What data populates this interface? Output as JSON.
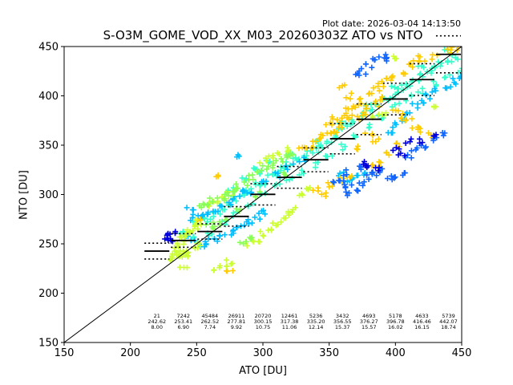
{
  "plot_date": "Plot date: 2026-03-04 14:13:50",
  "chart_data": {
    "type": "scatter",
    "title": "S-O3M_GOME_VOD_XX_M03_20260303Z ATO vs NTO",
    "xlabel": "ATO [DU]",
    "ylabel": "NTO [DU]",
    "xlim": [
      150,
      450
    ],
    "ylim": [
      150,
      450
    ],
    "xticks": [
      "150",
      "200",
      "250",
      "300",
      "350",
      "400",
      "450"
    ],
    "yticks": [
      "150",
      "200",
      "250",
      "300",
      "350",
      "400",
      "450"
    ],
    "grid": false,
    "reference_line": "1:1",
    "bins": [
      {
        "x": 220,
        "count": "21",
        "mean": "242.62",
        "std": "8.00"
      },
      {
        "x": 240,
        "count": "7242",
        "mean": "253.41",
        "std": "6.90"
      },
      {
        "x": 260,
        "count": "45484",
        "mean": "262.52",
        "std": "7.74"
      },
      {
        "x": 280,
        "count": "26911",
        "mean": "277.81",
        "std": "9.92"
      },
      {
        "x": 300,
        "count": "20720",
        "mean": "300.15",
        "std": "10.75"
      },
      {
        "x": 320,
        "count": "12461",
        "mean": "317.38",
        "std": "11.06"
      },
      {
        "x": 340,
        "count": "5236",
        "mean": "335.20",
        "std": "12.14"
      },
      {
        "x": 360,
        "count": "3432",
        "mean": "356.55",
        "std": "15.37"
      },
      {
        "x": 380,
        "count": "4693",
        "mean": "376.27",
        "std": "15.57"
      },
      {
        "x": 400,
        "count": "5178",
        "mean": "396.78",
        "std": "16.02"
      },
      {
        "x": 420,
        "count": "4633",
        "mean": "416.46",
        "std": "16.15"
      },
      {
        "x": 440,
        "count": "5739",
        "mean": "442.07",
        "std": "18.74"
      }
    ],
    "clusters": [
      {
        "color": "#33ffcc",
        "marker": "+",
        "points": [
          [
            240,
            262
          ],
          [
            250,
            270
          ],
          [
            255,
            278
          ],
          [
            260,
            275
          ],
          [
            265,
            282
          ],
          [
            270,
            286
          ],
          [
            275,
            290
          ],
          [
            280,
            295
          ],
          [
            285,
            300
          ],
          [
            290,
            305
          ],
          [
            295,
            310
          ],
          [
            300,
            312
          ],
          [
            305,
            318
          ],
          [
            310,
            322
          ],
          [
            315,
            325
          ],
          [
            320,
            330
          ],
          [
            325,
            335
          ],
          [
            330,
            338
          ],
          [
            335,
            342
          ],
          [
            340,
            345
          ],
          [
            345,
            350
          ],
          [
            350,
            355
          ],
          [
            355,
            360
          ],
          [
            360,
            365
          ],
          [
            365,
            370
          ],
          [
            370,
            375
          ],
          [
            375,
            380
          ],
          [
            380,
            385
          ],
          [
            385,
            390
          ],
          [
            390,
            395
          ],
          [
            395,
            398
          ],
          [
            400,
            402
          ],
          [
            405,
            408
          ],
          [
            410,
            412
          ],
          [
            415,
            415
          ],
          [
            420,
            420
          ],
          [
            425,
            425
          ],
          [
            430,
            430
          ],
          [
            435,
            433
          ],
          [
            440,
            437
          ],
          [
            445,
            440
          ],
          [
            260,
            260
          ],
          [
            270,
            270
          ],
          [
            280,
            280
          ],
          [
            290,
            290
          ],
          [
            300,
            300
          ],
          [
            310,
            310
          ],
          [
            320,
            315
          ],
          [
            330,
            322
          ],
          [
            340,
            330
          ],
          [
            350,
            340
          ],
          [
            360,
            348
          ],
          [
            370,
            360
          ],
          [
            380,
            370
          ],
          [
            390,
            380
          ],
          [
            400,
            390
          ],
          [
            410,
            398
          ],
          [
            420,
            405
          ],
          [
            430,
            412
          ],
          [
            440,
            420
          ],
          [
            450,
            425
          ],
          [
            250,
            258
          ],
          [
            300,
            322
          ],
          [
            320,
            340
          ],
          [
            340,
            355
          ],
          [
            360,
            372
          ],
          [
            380,
            390
          ],
          [
            400,
            410
          ],
          [
            420,
            430
          ],
          [
            440,
            445
          ],
          [
            275,
            305
          ],
          [
            285,
            315
          ],
          [
            295,
            325
          ],
          [
            305,
            335
          ]
        ]
      },
      {
        "color": "#00bfff",
        "marker": "+",
        "points": [
          [
            245,
            255
          ],
          [
            250,
            252
          ],
          [
            255,
            250
          ],
          [
            260,
            252
          ],
          [
            265,
            255
          ],
          [
            270,
            258
          ],
          [
            275,
            262
          ],
          [
            280,
            265
          ],
          [
            285,
            270
          ],
          [
            290,
            272
          ],
          [
            295,
            278
          ],
          [
            300,
            282
          ],
          [
            245,
            275
          ],
          [
            250,
            278
          ],
          [
            255,
            280
          ],
          [
            260,
            282
          ],
          [
            265,
            285
          ],
          [
            270,
            288
          ],
          [
            275,
            292
          ],
          [
            280,
            298
          ],
          [
            290,
            300
          ],
          [
            300,
            312
          ],
          [
            310,
            320
          ],
          [
            320,
            328
          ],
          [
            330,
            335
          ],
          [
            415,
            390
          ],
          [
            420,
            395
          ],
          [
            425,
            400
          ],
          [
            430,
            405
          ],
          [
            440,
            410
          ],
          [
            445,
            415
          ],
          [
            450,
            420
          ],
          [
            395,
            365
          ],
          [
            400,
            370
          ],
          [
            405,
            375
          ],
          [
            410,
            380
          ],
          [
            360,
            320
          ],
          [
            365,
            315
          ],
          [
            370,
            318
          ],
          [
            375,
            322
          ],
          [
            280,
            340
          ],
          [
            245,
            285
          ],
          [
            285,
            305
          ]
        ]
      },
      {
        "color": "#ffcc00",
        "marker": "+",
        "points": [
          [
            330,
            345
          ],
          [
            335,
            350
          ],
          [
            340,
            355
          ],
          [
            345,
            360
          ],
          [
            350,
            362
          ],
          [
            355,
            365
          ],
          [
            360,
            370
          ],
          [
            365,
            375
          ],
          [
            370,
            378
          ],
          [
            375,
            382
          ],
          [
            380,
            388
          ],
          [
            385,
            392
          ],
          [
            390,
            398
          ],
          [
            350,
            370
          ],
          [
            355,
            378
          ],
          [
            360,
            380
          ],
          [
            365,
            385
          ],
          [
            370,
            390
          ],
          [
            375,
            395
          ],
          [
            380,
            400
          ],
          [
            385,
            408
          ],
          [
            390,
            412
          ],
          [
            395,
            415
          ],
          [
            400,
            420
          ],
          [
            405,
            425
          ],
          [
            410,
            430
          ],
          [
            415,
            435
          ],
          [
            420,
            438
          ],
          [
            430,
            440
          ],
          [
            440,
            445
          ],
          [
            445,
            448
          ],
          [
            400,
            385
          ],
          [
            405,
            380
          ],
          [
            410,
            375
          ],
          [
            415,
            370
          ],
          [
            420,
            365
          ],
          [
            425,
            360
          ],
          [
            380,
            360
          ],
          [
            385,
            355
          ],
          [
            370,
            348
          ],
          [
            340,
            305
          ],
          [
            345,
            300
          ],
          [
            350,
            310
          ],
          [
            360,
            315
          ],
          [
            365,
            320
          ],
          [
            385,
            330
          ],
          [
            390,
            335
          ],
          [
            395,
            340
          ],
          [
            400,
            350
          ],
          [
            250,
            275
          ],
          [
            265,
            318
          ],
          [
            275,
            225
          ],
          [
            360,
            410
          ],
          [
            365,
            400
          ]
        ]
      },
      {
        "color": "#ccff33",
        "marker": "+",
        "points": [
          [
            230,
            235
          ],
          [
            232,
            238
          ],
          [
            235,
            240
          ],
          [
            238,
            242
          ],
          [
            240,
            236
          ],
          [
            242,
            240
          ],
          [
            245,
            242
          ],
          [
            248,
            245
          ],
          [
            250,
            248
          ],
          [
            235,
            245
          ],
          [
            238,
            250
          ],
          [
            240,
            255
          ],
          [
            243,
            258
          ],
          [
            245,
            262
          ],
          [
            248,
            265
          ],
          [
            250,
            268
          ],
          [
            252,
            272
          ],
          [
            240,
            228
          ],
          [
            265,
            225
          ],
          [
            270,
            226
          ],
          [
            275,
            232
          ],
          [
            290,
            250
          ],
          [
            295,
            255
          ],
          [
            300,
            260
          ],
          [
            305,
            265
          ],
          [
            310,
            270
          ],
          [
            315,
            275
          ],
          [
            320,
            280
          ],
          [
            325,
            285
          ],
          [
            300,
            335
          ],
          [
            305,
            340
          ],
          [
            310,
            342
          ],
          [
            320,
            345
          ],
          [
            260,
            290
          ],
          [
            265,
            293
          ],
          [
            270,
            298
          ],
          [
            275,
            300
          ],
          [
            330,
            300
          ],
          [
            335,
            305
          ],
          [
            385,
            380
          ],
          [
            390,
            382
          ],
          [
            400,
            440
          ],
          [
            430,
            390
          ]
        ]
      },
      {
        "color": "#88ff55",
        "marker": "+",
        "points": [
          [
            252,
            288
          ],
          [
            258,
            290
          ],
          [
            262,
            294
          ],
          [
            268,
            296
          ],
          [
            272,
            300
          ],
          [
            278,
            305
          ],
          [
            282,
            308
          ],
          [
            288,
            312
          ],
          [
            292,
            318
          ],
          [
            298,
            322
          ],
          [
            302,
            328
          ],
          [
            308,
            330
          ],
          [
            312,
            336
          ],
          [
            318,
            340
          ],
          [
            322,
            342
          ],
          [
            260,
            268
          ],
          [
            265,
            270
          ],
          [
            270,
            275
          ],
          [
            280,
            285
          ],
          [
            295,
            300
          ],
          [
            315,
            320
          ],
          [
            285,
            250
          ],
          [
            290,
            255
          ]
        ]
      },
      {
        "color": "#1166ff",
        "marker": "+",
        "points": [
          [
            355,
            315
          ],
          [
            360,
            312
          ],
          [
            365,
            308
          ],
          [
            370,
            305
          ],
          [
            375,
            310
          ],
          [
            380,
            318
          ],
          [
            385,
            322
          ],
          [
            390,
            325
          ],
          [
            395,
            318
          ],
          [
            400,
            316
          ],
          [
            405,
            322
          ],
          [
            410,
            340
          ],
          [
            415,
            345
          ],
          [
            420,
            350
          ],
          [
            430,
            355
          ],
          [
            435,
            360
          ],
          [
            380,
            430
          ],
          [
            385,
            435
          ],
          [
            390,
            440
          ],
          [
            395,
            438
          ],
          [
            375,
            425
          ],
          [
            370,
            420
          ],
          [
            365,
            300
          ],
          [
            362,
            322
          ],
          [
            372,
            328
          ]
        ]
      },
      {
        "color": "#0000dd",
        "marker": "+",
        "points": [
          [
            229,
            256
          ],
          [
            230,
            258
          ],
          [
            231,
            255
          ],
          [
            232,
            260
          ],
          [
            375,
            332
          ],
          [
            380,
            328
          ],
          [
            385,
            325
          ],
          [
            400,
            345
          ],
          [
            405,
            342
          ],
          [
            410,
            355
          ],
          [
            420,
            355
          ],
          [
            430,
            360
          ]
        ]
      }
    ]
  }
}
